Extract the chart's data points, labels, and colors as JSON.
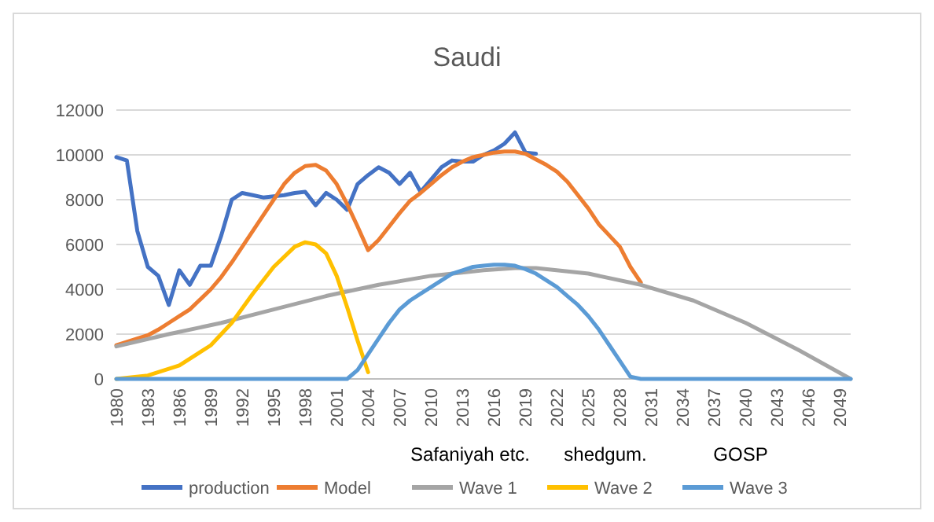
{
  "chart_data": {
    "type": "line",
    "title": "Saudi",
    "xlim": [
      1980,
      2050
    ],
    "xticks": [
      1980,
      1983,
      1986,
      1989,
      1992,
      1995,
      1998,
      2001,
      2004,
      2007,
      2010,
      2013,
      2016,
      2019,
      2022,
      2025,
      2028,
      2031,
      2034,
      2037,
      2040,
      2043,
      2046,
      2049
    ],
    "ylim": [
      0,
      12000
    ],
    "yticks": [
      0,
      2000,
      4000,
      6000,
      8000,
      10000,
      12000
    ],
    "grid": "y",
    "legend": "bottom",
    "marker": "none",
    "line_style": "solid",
    "annotations": [
      "Safaniyah etc.",
      "shedgum.",
      "GOSP"
    ],
    "series": [
      {
        "name": "production",
        "color": "#4472c4",
        "x": [
          1980,
          1981,
          1982,
          1983,
          1984,
          1985,
          1986,
          1987,
          1988,
          1989,
          1990,
          1991,
          1992,
          1993,
          1994,
          1995,
          1996,
          1997,
          1998,
          1999,
          2000,
          2001,
          2002,
          2003,
          2004,
          2005,
          2006,
          2007,
          2008,
          2009,
          2010,
          2011,
          2012,
          2013,
          2014,
          2015,
          2016,
          2017,
          2018,
          2019,
          2020
        ],
        "values": [
          9900,
          9750,
          6600,
          5000,
          4600,
          3300,
          4850,
          4200,
          5050,
          5050,
          6400,
          8000,
          8300,
          8200,
          8100,
          8150,
          8200,
          8300,
          8350,
          7750,
          8300,
          8000,
          7550,
          8700,
          9100,
          9450,
          9200,
          8700,
          9200,
          8350,
          8900,
          9450,
          9750,
          9700,
          9700,
          10000,
          10200,
          10500,
          11000,
          10100,
          10050
        ]
      },
      {
        "name": "Model",
        "color": "#ed7d31",
        "x": [
          1980,
          1981,
          1982,
          1983,
          1984,
          1985,
          1986,
          1987,
          1988,
          1989,
          1990,
          1991,
          1992,
          1993,
          1994,
          1995,
          1996,
          1997,
          1998,
          1999,
          2000,
          2001,
          2002,
          2003,
          2004,
          2005,
          2006,
          2007,
          2008,
          2009,
          2010,
          2011,
          2012,
          2013,
          2014,
          2015,
          2016,
          2017,
          2018,
          2019,
          2020,
          2021,
          2022,
          2023,
          2024,
          2025,
          2026,
          2027,
          2028,
          2029,
          2030
        ],
        "values": [
          1500,
          1650,
          1800,
          1950,
          2200,
          2500,
          2800,
          3100,
          3550,
          4000,
          4550,
          5200,
          5900,
          6600,
          7300,
          8000,
          8700,
          9200,
          9500,
          9550,
          9300,
          8700,
          7800,
          6800,
          5750,
          6200,
          6800,
          7400,
          7950,
          8300,
          8700,
          9100,
          9450,
          9700,
          9900,
          10000,
          10100,
          10150,
          10150,
          10050,
          9800,
          9550,
          9250,
          8800,
          8200,
          7600,
          6900,
          6400,
          5900,
          5000,
          4300
        ]
      },
      {
        "name": "Wave 1",
        "color": "#a5a5a5",
        "x": [
          1980,
          1985,
          1990,
          1995,
          2000,
          2005,
          2010,
          2015,
          2018,
          2020,
          2025,
          2030,
          2035,
          2040,
          2045,
          2050
        ],
        "values": [
          1450,
          2000,
          2500,
          3100,
          3700,
          4200,
          4600,
          4850,
          4950,
          4950,
          4700,
          4200,
          3500,
          2500,
          1300,
          0
        ]
      },
      {
        "name": "Wave 2",
        "color": "#ffc000",
        "x": [
          1980,
          1983,
          1986,
          1989,
          1991,
          1993,
          1995,
          1997,
          1998,
          1999,
          2000,
          2001,
          2002,
          2003,
          2004
        ],
        "values": [
          0,
          150,
          600,
          1500,
          2500,
          3800,
          5000,
          5900,
          6100,
          6000,
          5600,
          4600,
          3200,
          1700,
          300
        ]
      },
      {
        "name": "Wave 3",
        "color": "#5b9bd5",
        "x": [
          1980,
          2002,
          2003,
          2004,
          2005,
          2006,
          2007,
          2008,
          2009,
          2010,
          2011,
          2012,
          2013,
          2014,
          2015,
          2016,
          2017,
          2018,
          2019,
          2020,
          2021,
          2022,
          2023,
          2024,
          2025,
          2026,
          2027,
          2028,
          2029,
          2030,
          2050
        ],
        "values": [
          0,
          0,
          400,
          1100,
          1800,
          2500,
          3100,
          3500,
          3800,
          4100,
          4400,
          4700,
          4850,
          5000,
          5050,
          5100,
          5100,
          5050,
          4900,
          4700,
          4400,
          4100,
          3700,
          3300,
          2800,
          2200,
          1500,
          800,
          100,
          0,
          0
        ]
      }
    ]
  }
}
